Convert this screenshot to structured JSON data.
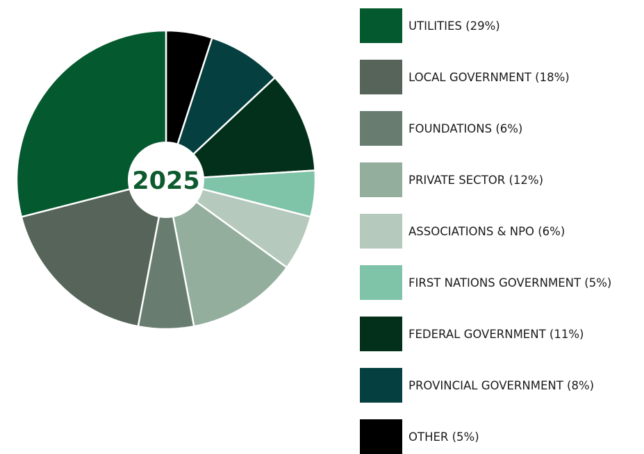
{
  "chart_data": {
    "type": "pie",
    "center_label": "2025",
    "center_label_color": "#0d5a2e",
    "start_angle_deg": 0,
    "direction": "clockwise-from-top, rendered order: other, provincial, federal, first nations, associations, private sector, foundations, local government, utilities",
    "slices": [
      {
        "label": "UTILITIES (29%)",
        "value": 29,
        "color": "#045a2e"
      },
      {
        "label": "LOCAL GOVERNMENT (18%)",
        "value": 18,
        "color": "#56645a"
      },
      {
        "label": "FOUNDATIONS (6%)",
        "value": 6,
        "color": "#687d70"
      },
      {
        "label": "PRIVATE SECTOR (12%)",
        "value": 12,
        "color": "#93ae9d"
      },
      {
        "label": "ASSOCIATIONS & NPO (6%)",
        "value": 6,
        "color": "#b6c9bd"
      },
      {
        "label": "FIRST NATIONS GOVERNMENT (5%)",
        "value": 5,
        "color": "#7fc3a8"
      },
      {
        "label": "FEDERAL GOVERNMENT (11%)",
        "value": 11,
        "color": "#03301a"
      },
      {
        "label": "PROVINCIAL GOVERNMENT (8%)",
        "value": 8,
        "color": "#053f3f"
      },
      {
        "label": "OTHER (5%)",
        "value": 5,
        "color": "#000000"
      }
    ],
    "draw_order": [
      8,
      7,
      6,
      5,
      4,
      3,
      2,
      1,
      0
    ],
    "legend_position": "right"
  }
}
